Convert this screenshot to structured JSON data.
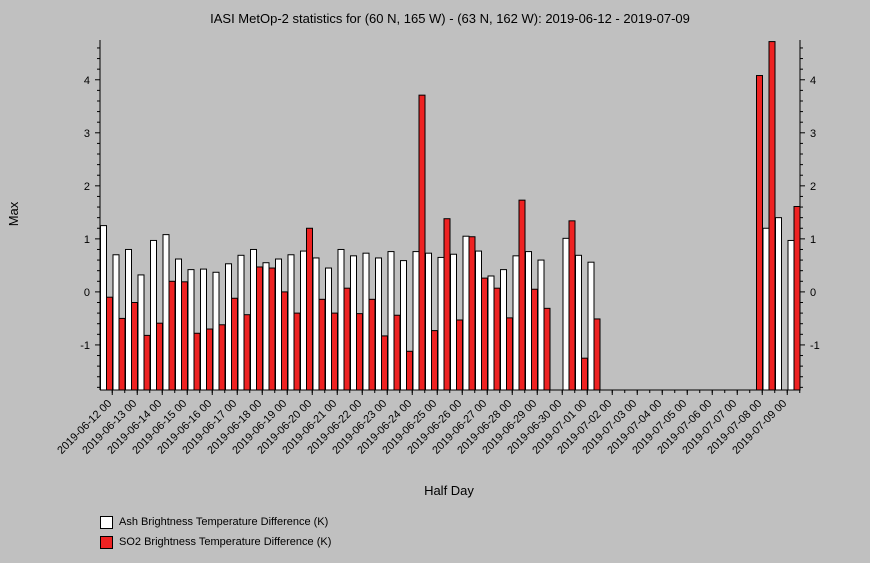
{
  "title": "IASI MetOp-2 statistics for (60 N, 165 W) - (63 N, 162 W): 2019-06-12 - 2019-07-09",
  "chart_data": {
    "type": "bar",
    "xlabel": "Half Day",
    "ylabel": "Max",
    "ylim": [
      -1.85,
      4.75
    ],
    "yticks": [
      -1,
      0,
      1,
      2,
      3,
      4
    ],
    "legend_position": "bottom-left",
    "x_tick_labels": [
      "2019-06-12 00",
      "2019-06-13 00",
      "2019-06-14 00",
      "2019-06-15 00",
      "2019-06-16 00",
      "2019-06-17 00",
      "2019-06-18 00",
      "2019-06-19 00",
      "2019-06-20 00",
      "2019-06-21 00",
      "2019-06-22 00",
      "2019-06-23 00",
      "2019-06-24 00",
      "2019-06-25 00",
      "2019-06-26 00",
      "2019-06-27 00",
      "2019-06-28 00",
      "2019-06-29 00",
      "2019-06-30 00",
      "2019-07-01 00",
      "2019-07-02 00",
      "2019-07-03 00",
      "2019-07-04 00",
      "2019-07-05 00",
      "2019-07-06 00",
      "2019-07-07 00",
      "2019-07-08 00",
      "2019-07-09 00"
    ],
    "series": [
      {
        "name": "Ash Brightness Temperature Difference (K)",
        "color": "#ffffff",
        "values": [
          1.25,
          0.7,
          0.8,
          0.32,
          0.97,
          1.08,
          0.62,
          0.42,
          0.43,
          0.37,
          0.53,
          0.69,
          0.8,
          0.55,
          0.62,
          0.7,
          0.77,
          0.64,
          0.45,
          0.8,
          0.68,
          0.73,
          0.64,
          0.76,
          0.59,
          0.76,
          0.73,
          0.65,
          0.71,
          1.05,
          0.77,
          0.3,
          0.42,
          0.68,
          0.76,
          0.6,
          null,
          1.01,
          0.69,
          0.56,
          null,
          null,
          null,
          null,
          null,
          null,
          null,
          null,
          null,
          null,
          null,
          null,
          null,
          1.2,
          1.4,
          0.97
        ]
      },
      {
        "name": "SO2 Brightness Temperature Difference (K)",
        "color": "#ee2222",
        "values": [
          -0.1,
          -0.5,
          -0.2,
          -0.82,
          -0.59,
          0.2,
          0.19,
          -0.78,
          -0.7,
          -0.62,
          -0.12,
          -0.43,
          0.47,
          0.45,
          0.0,
          -0.4,
          1.2,
          -0.14,
          -0.4,
          0.07,
          -0.41,
          -0.14,
          -0.83,
          -0.44,
          -1.12,
          3.71,
          -0.73,
          1.38,
          -0.53,
          1.04,
          0.26,
          0.07,
          -0.49,
          1.73,
          0.05,
          -0.31,
          null,
          1.34,
          -1.25,
          -0.51,
          null,
          null,
          null,
          null,
          null,
          null,
          null,
          null,
          null,
          null,
          null,
          null,
          4.08,
          4.72,
          null,
          1.61
        ]
      }
    ]
  }
}
